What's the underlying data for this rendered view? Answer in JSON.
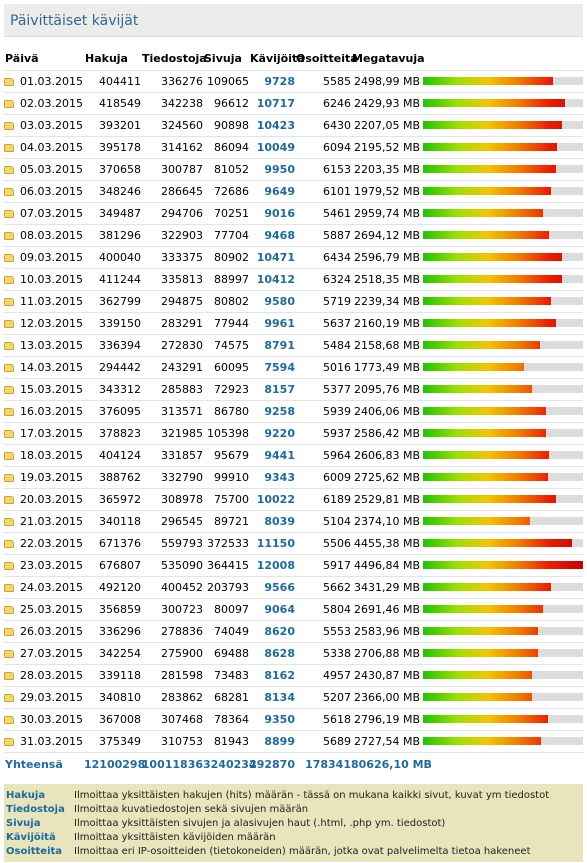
{
  "title": "Päivittäiset kävijät",
  "columns": {
    "date": "Päivä",
    "hits": "Hakuja",
    "files": "Tiedostoja",
    "pages": "Sivuja",
    "visits": "Kävijöitä",
    "sites": "Osoitteita",
    "kbytes": "Megatavuja"
  },
  "rows": [
    {
      "date": "01.03.2015",
      "hits": "404411",
      "files": "336276",
      "pages": "109065",
      "visits": "9728",
      "sites": "5585",
      "mb": "2498,99 MB",
      "bar": 0.81
    },
    {
      "date": "02.03.2015",
      "hits": "418549",
      "files": "342238",
      "pages": "96612",
      "visits": "10717",
      "sites": "6246",
      "mb": "2429,93 MB",
      "bar": 0.89
    },
    {
      "date": "03.03.2015",
      "hits": "393201",
      "files": "324560",
      "pages": "90898",
      "visits": "10423",
      "sites": "6430",
      "mb": "2207,05 MB",
      "bar": 0.87
    },
    {
      "date": "04.03.2015",
      "hits": "395178",
      "files": "314162",
      "pages": "86094",
      "visits": "10049",
      "sites": "6094",
      "mb": "2195,52 MB",
      "bar": 0.84
    },
    {
      "date": "05.03.2015",
      "hits": "370658",
      "files": "300787",
      "pages": "81052",
      "visits": "9950",
      "sites": "6153",
      "mb": "2203,35 MB",
      "bar": 0.83
    },
    {
      "date": "06.03.2015",
      "hits": "348246",
      "files": "286645",
      "pages": "72686",
      "visits": "9649",
      "sites": "6101",
      "mb": "1979,52 MB",
      "bar": 0.8
    },
    {
      "date": "07.03.2015",
      "hits": "349487",
      "files": "294706",
      "pages": "70251",
      "visits": "9016",
      "sites": "5461",
      "mb": "2959,74 MB",
      "bar": 0.75
    },
    {
      "date": "08.03.2015",
      "hits": "381296",
      "files": "322903",
      "pages": "77704",
      "visits": "9468",
      "sites": "5887",
      "mb": "2694,12 MB",
      "bar": 0.79
    },
    {
      "date": "09.03.2015",
      "hits": "400040",
      "files": "333375",
      "pages": "80902",
      "visits": "10471",
      "sites": "6434",
      "mb": "2596,79 MB",
      "bar": 0.87
    },
    {
      "date": "10.03.2015",
      "hits": "411244",
      "files": "335813",
      "pages": "88997",
      "visits": "10412",
      "sites": "6324",
      "mb": "2518,35 MB",
      "bar": 0.87
    },
    {
      "date": "11.03.2015",
      "hits": "362799",
      "files": "294875",
      "pages": "80802",
      "visits": "9580",
      "sites": "5719",
      "mb": "2239,34 MB",
      "bar": 0.8
    },
    {
      "date": "12.03.2015",
      "hits": "339150",
      "files": "283291",
      "pages": "77944",
      "visits": "9961",
      "sites": "5637",
      "mb": "2160,19 MB",
      "bar": 0.83
    },
    {
      "date": "13.03.2015",
      "hits": "336394",
      "files": "272830",
      "pages": "74575",
      "visits": "8791",
      "sites": "5484",
      "mb": "2158,68 MB",
      "bar": 0.73
    },
    {
      "date": "14.03.2015",
      "hits": "294442",
      "files": "243291",
      "pages": "60095",
      "visits": "7594",
      "sites": "5016",
      "mb": "1773,49 MB",
      "bar": 0.63
    },
    {
      "date": "15.03.2015",
      "hits": "343312",
      "files": "285883",
      "pages": "72923",
      "visits": "8157",
      "sites": "5377",
      "mb": "2095,76 MB",
      "bar": 0.68
    },
    {
      "date": "16.03.2015",
      "hits": "376095",
      "files": "313571",
      "pages": "86780",
      "visits": "9258",
      "sites": "5939",
      "mb": "2406,06 MB",
      "bar": 0.77
    },
    {
      "date": "17.03.2015",
      "hits": "378823",
      "files": "321985",
      "pages": "105398",
      "visits": "9220",
      "sites": "5937",
      "mb": "2586,42 MB",
      "bar": 0.77
    },
    {
      "date": "18.03.2015",
      "hits": "404124",
      "files": "331857",
      "pages": "95679",
      "visits": "9441",
      "sites": "5964",
      "mb": "2606,83 MB",
      "bar": 0.79
    },
    {
      "date": "19.03.2015",
      "hits": "388762",
      "files": "332790",
      "pages": "99910",
      "visits": "9343",
      "sites": "6009",
      "mb": "2725,62 MB",
      "bar": 0.78
    },
    {
      "date": "20.03.2015",
      "hits": "365972",
      "files": "308978",
      "pages": "75700",
      "visits": "10022",
      "sites": "6189",
      "mb": "2529,81 MB",
      "bar": 0.83
    },
    {
      "date": "21.03.2015",
      "hits": "340118",
      "files": "296545",
      "pages": "89721",
      "visits": "8039",
      "sites": "5104",
      "mb": "2374,10 MB",
      "bar": 0.67
    },
    {
      "date": "22.03.2015",
      "hits": "671376",
      "files": "559793",
      "pages": "372533",
      "visits": "11150",
      "sites": "5506",
      "mb": "4455,38 MB",
      "bar": 0.93
    },
    {
      "date": "23.03.2015",
      "hits": "676807",
      "files": "535090",
      "pages": "364415",
      "visits": "12008",
      "sites": "5917",
      "mb": "4496,84 MB",
      "bar": 1.0
    },
    {
      "date": "24.03.2015",
      "hits": "492120",
      "files": "400452",
      "pages": "203793",
      "visits": "9566",
      "sites": "5662",
      "mb": "3431,29 MB",
      "bar": 0.8
    },
    {
      "date": "25.03.2015",
      "hits": "356859",
      "files": "300723",
      "pages": "80097",
      "visits": "9064",
      "sites": "5804",
      "mb": "2691,46 MB",
      "bar": 0.75
    },
    {
      "date": "26.03.2015",
      "hits": "336296",
      "files": "278836",
      "pages": "74049",
      "visits": "8620",
      "sites": "5553",
      "mb": "2583,96 MB",
      "bar": 0.72
    },
    {
      "date": "27.03.2015",
      "hits": "342254",
      "files": "275900",
      "pages": "69488",
      "visits": "8628",
      "sites": "5338",
      "mb": "2706,88 MB",
      "bar": 0.72
    },
    {
      "date": "28.03.2015",
      "hits": "339118",
      "files": "281598",
      "pages": "73483",
      "visits": "8162",
      "sites": "4957",
      "mb": "2430,87 MB",
      "bar": 0.68
    },
    {
      "date": "29.03.2015",
      "hits": "340810",
      "files": "283862",
      "pages": "68281",
      "visits": "8134",
      "sites": "5207",
      "mb": "2366,00 MB",
      "bar": 0.68
    },
    {
      "date": "30.03.2015",
      "hits": "367008",
      "files": "307468",
      "pages": "78364",
      "visits": "9350",
      "sites": "5618",
      "mb": "2796,19 MB",
      "bar": 0.78
    },
    {
      "date": "31.03.2015",
      "hits": "375349",
      "files": "310753",
      "pages": "81943",
      "visits": "8899",
      "sites": "5689",
      "mb": "2727,54 MB",
      "bar": 0.74
    }
  ],
  "totals": {
    "label": "Yhteensä",
    "hits": "12100298",
    "files": "10011836",
    "pages": "3240234",
    "visits": "292870",
    "sites": "178341",
    "mb": "80626,10 MB"
  },
  "legend": [
    {
      "term": "Hakuja",
      "desc": "Ilmoittaa yksittäisten hakujen (hits) määrän - tässä on mukana kaikki sivut, kuvat ym tiedostot"
    },
    {
      "term": "Tiedostoja",
      "desc": "Ilmoittaa kuvatiedostojen sekä sivujen määrän"
    },
    {
      "term": "Sivuja",
      "desc": "Ilmoittaa yksittäisten sivujen ja alasivujen haut (.html, .php ym. tiedostot)"
    },
    {
      "term": "Kävijöitä",
      "desc": "Ilmoittaa yksittäisten kävijöiden määrän"
    },
    {
      "term": "Osoitteita",
      "desc": "Ilmoittaa eri IP-osoitteiden (tietokoneiden) määrän, jotka ovat palvelimelta tietoa hakeneet"
    }
  ],
  "colors": {
    "title": "#2f6a8f",
    "accent": "#1e6a9c",
    "legend_bg": "#e8e4bc",
    "bar_empty": "#dcdcdc"
  },
  "icons": {
    "row": "folder-icon"
  }
}
